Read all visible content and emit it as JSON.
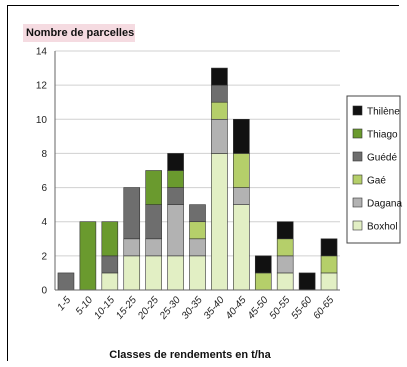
{
  "chart_data": {
    "type": "bar",
    "stacked": true,
    "ylabel": "Nombre de parcelles",
    "xlabel": "Classes de rendements en t/ha",
    "ylim": [
      0,
      14
    ],
    "yticks": [
      0,
      2,
      4,
      6,
      8,
      10,
      12,
      14
    ],
    "categories": [
      "1-5",
      "5-10",
      "10-15",
      "15-25",
      "20-25",
      "25-30",
      "30-35",
      "35-40",
      "40-45",
      "45-50",
      "50-55",
      "55-60",
      "60-65"
    ],
    "series": [
      {
        "name": "Boxhol",
        "color": "#e2efc4",
        "values": [
          0,
          0,
          1,
          2,
          2,
          2,
          2,
          8,
          5,
          0,
          1,
          0,
          1
        ]
      },
      {
        "name": "Dagana",
        "color": "#b2b2b2",
        "values": [
          0,
          0,
          0,
          1,
          1,
          3,
          1,
          2,
          1,
          0,
          1,
          0,
          0
        ]
      },
      {
        "name": "Gaé",
        "color": "#b5cf6a",
        "values": [
          0,
          0,
          0,
          0,
          0,
          0,
          1,
          1,
          2,
          1,
          1,
          0,
          1
        ]
      },
      {
        "name": "Guédé",
        "color": "#6e6e6e",
        "values": [
          1,
          0,
          1,
          3,
          2,
          1,
          1,
          1,
          0,
          0,
          0,
          0,
          0
        ]
      },
      {
        "name": "Thiago",
        "color": "#6a9a2e",
        "values": [
          0,
          4,
          2,
          0,
          2,
          1,
          0,
          0,
          0,
          0,
          0,
          0,
          0
        ]
      },
      {
        "name": "Thilène",
        "color": "#111111",
        "values": [
          0,
          0,
          0,
          0,
          0,
          1,
          0,
          1,
          2,
          1,
          1,
          1,
          1
        ]
      }
    ],
    "legend_order": [
      "Thilène",
      "Thiago",
      "Guédé",
      "Gaé",
      "Dagana",
      "Boxhol"
    ],
    "legend_position": "right",
    "grid": "horizontal"
  }
}
